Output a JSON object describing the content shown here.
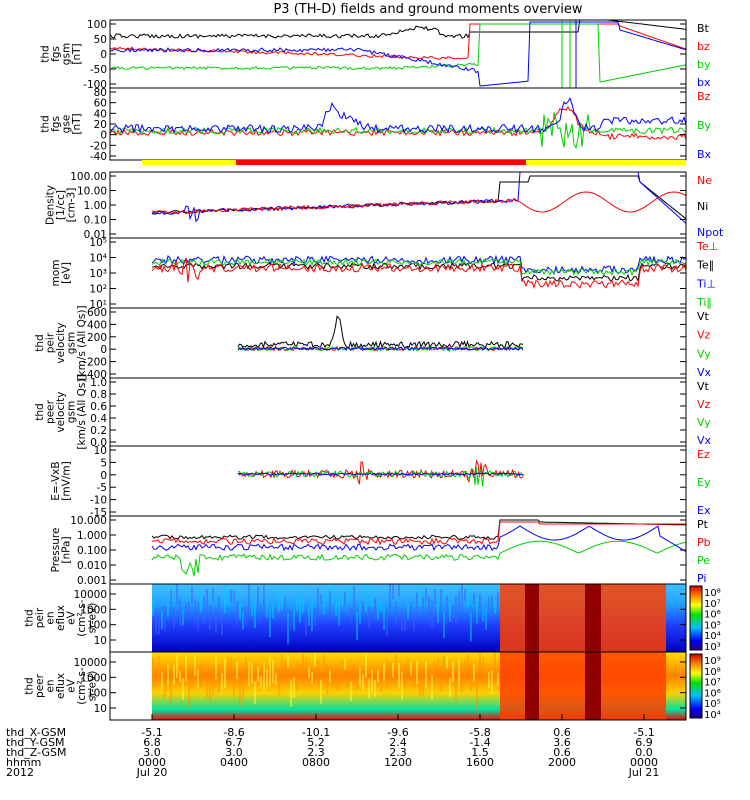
{
  "title": "P3 (TH-D) fields and ground moments overview",
  "colors": {
    "black": "#000000",
    "red": "#ff0000",
    "green": "#00d000",
    "blue": "#0000ff",
    "yellow": "#ffff00"
  },
  "chart_data": [
    {
      "type": "line",
      "ylabel": [
        "thd",
        "fgs",
        "gsm",
        "[nT]"
      ],
      "yticks": [
        "100",
        "50",
        "0",
        "-50",
        "-100"
      ],
      "ylim": [
        -100,
        100
      ],
      "legend": [
        {
          "name": "Bt",
          "color": "black"
        },
        {
          "name": "bz",
          "color": "red"
        },
        {
          "name": "by",
          "color": "green"
        },
        {
          "name": "bx",
          "color": "blue"
        }
      ]
    },
    {
      "type": "line",
      "ylabel": [
        "thd",
        "fgs",
        "gse",
        "[nT]"
      ],
      "yticks": [
        "80",
        "60",
        "40",
        "20",
        "0",
        "-20",
        "-40"
      ],
      "ylim": [
        -50,
        80
      ],
      "legend": [
        {
          "name": "Bz",
          "color": "red"
        },
        {
          "name": "By",
          "color": "green"
        },
        {
          "name": "Bx",
          "color": "blue"
        }
      ]
    },
    {
      "type": "line",
      "scale": "log",
      "ylabel": [
        "Density",
        "[1/cc]",
        "[cm-3]"
      ],
      "yticks": [
        "100.00",
        "10.00",
        "1.00",
        "0.10",
        "0.01"
      ],
      "ylim": [
        0.01,
        100
      ],
      "legend": [
        {
          "name": "Ne",
          "color": "red"
        },
        {
          "name": "Ni",
          "color": "black"
        },
        {
          "name": "Npot",
          "color": "blue"
        }
      ]
    },
    {
      "type": "line",
      "scale": "log",
      "ylabel": [
        "mom",
        "[eV]"
      ],
      "yticks": [
        "10⁵",
        "10⁴",
        "10³",
        "10²",
        "10¹"
      ],
      "ylim": [
        10,
        100000
      ],
      "legend": [
        {
          "name": "Te⊥",
          "color": "red"
        },
        {
          "name": "Te‖",
          "color": "black"
        },
        {
          "name": "Ti⊥",
          "color": "blue"
        },
        {
          "name": "Ti‖",
          "color": "green"
        }
      ]
    },
    {
      "type": "line",
      "ylabel": [
        "thd",
        "peir",
        "velocity",
        "gsm",
        "[km/s (All Qs)]"
      ],
      "yticks": [
        "600",
        "400",
        "200",
        "0",
        "-200",
        "-400"
      ],
      "ylim": [
        -400,
        600
      ],
      "legend": [
        {
          "name": "Vt",
          "color": "black"
        },
        {
          "name": "Vz",
          "color": "red"
        },
        {
          "name": "Vy",
          "color": "green"
        },
        {
          "name": "Vx",
          "color": "blue"
        }
      ]
    },
    {
      "type": "line",
      "ylabel": [
        "thd",
        "peer",
        "velocity",
        "gsm",
        "[km/s (All Qs)]"
      ],
      "yticks": [
        "1.0",
        "0.8",
        "0.6",
        "0.4",
        "0.2",
        "0.0"
      ],
      "ylim": [
        0,
        1
      ],
      "legend": [
        {
          "name": "Vt",
          "color": "black"
        },
        {
          "name": "Vz",
          "color": "red"
        },
        {
          "name": "Vy",
          "color": "green"
        },
        {
          "name": "Vx",
          "color": "blue"
        }
      ]
    },
    {
      "type": "line",
      "ylabel": [
        "E=-VxB",
        "[mV/m]"
      ],
      "yticks": [
        "10",
        "5",
        "0",
        "-5",
        "-10",
        "-15"
      ],
      "ylim": [
        -15,
        10
      ],
      "legend": [
        {
          "name": "Ez",
          "color": "red"
        },
        {
          "name": "Ey",
          "color": "green"
        },
        {
          "name": "Ex",
          "color": "blue"
        }
      ]
    },
    {
      "type": "line",
      "scale": "log",
      "ylabel": [
        "Pressure",
        "[nPa]"
      ],
      "yticks": [
        "10.000",
        "1.000",
        "0.100",
        "0.010",
        "0.001"
      ],
      "ylim": [
        0.001,
        10
      ],
      "legend": [
        {
          "name": "Pt",
          "color": "black"
        },
        {
          "name": "Pb",
          "color": "red"
        },
        {
          "name": "Pe",
          "color": "green"
        },
        {
          "name": "Pi",
          "color": "blue"
        }
      ]
    },
    {
      "type": "heatmap",
      "ylabel": [
        "thd",
        "peir",
        "en",
        "eflux",
        "eV",
        "(cm²-s-",
        "sr-eV)"
      ],
      "yticks": [
        "10000",
        "1000",
        "100",
        "10"
      ],
      "colorbar": [
        "10⁸",
        "10⁷",
        "10⁶",
        "10⁵",
        "10⁴",
        "10³"
      ]
    },
    {
      "type": "heatmap",
      "ylabel": [
        "thd",
        "peer",
        "en",
        "eflux",
        "eV",
        "(cm²-s-",
        "sr-eV)"
      ],
      "yticks": [
        "10000",
        "1000",
        "100",
        "10"
      ],
      "colorbar": [
        "10⁹",
        "10⁸",
        "10⁷",
        "10⁶",
        "10⁵",
        "10⁴"
      ]
    }
  ],
  "xaxis": {
    "row_labels": [
      "thd_X-GSM",
      "thd_Y-GSM",
      "thd_Z-GSM",
      "hhmm",
      "2012"
    ],
    "columns": [
      {
        "x": "-5.1",
        "y": "6.8",
        "z": "3.0",
        "hhmm": "0000",
        "date": "Jul 20"
      },
      {
        "x": "-8.6",
        "y": "6.7",
        "z": "3.0",
        "hhmm": "0400",
        "date": ""
      },
      {
        "x": "-10.1",
        "y": "5.2",
        "z": "2.3",
        "hhmm": "0800",
        "date": ""
      },
      {
        "x": "-9.6",
        "y": "2.4",
        "z": "2.3",
        "hhmm": "1200",
        "date": ""
      },
      {
        "x": "-5.8",
        "y": "-1.4",
        "z": "1.5",
        "hhmm": "1600",
        "date": ""
      },
      {
        "x": "0.6",
        "y": "3.6",
        "z": "0.6",
        "hhmm": "2000",
        "date": ""
      },
      {
        "x": "-5.1",
        "y": "6.9",
        "z": "0.0",
        "hhmm": "0000",
        "date": "Jul 21"
      }
    ]
  }
}
